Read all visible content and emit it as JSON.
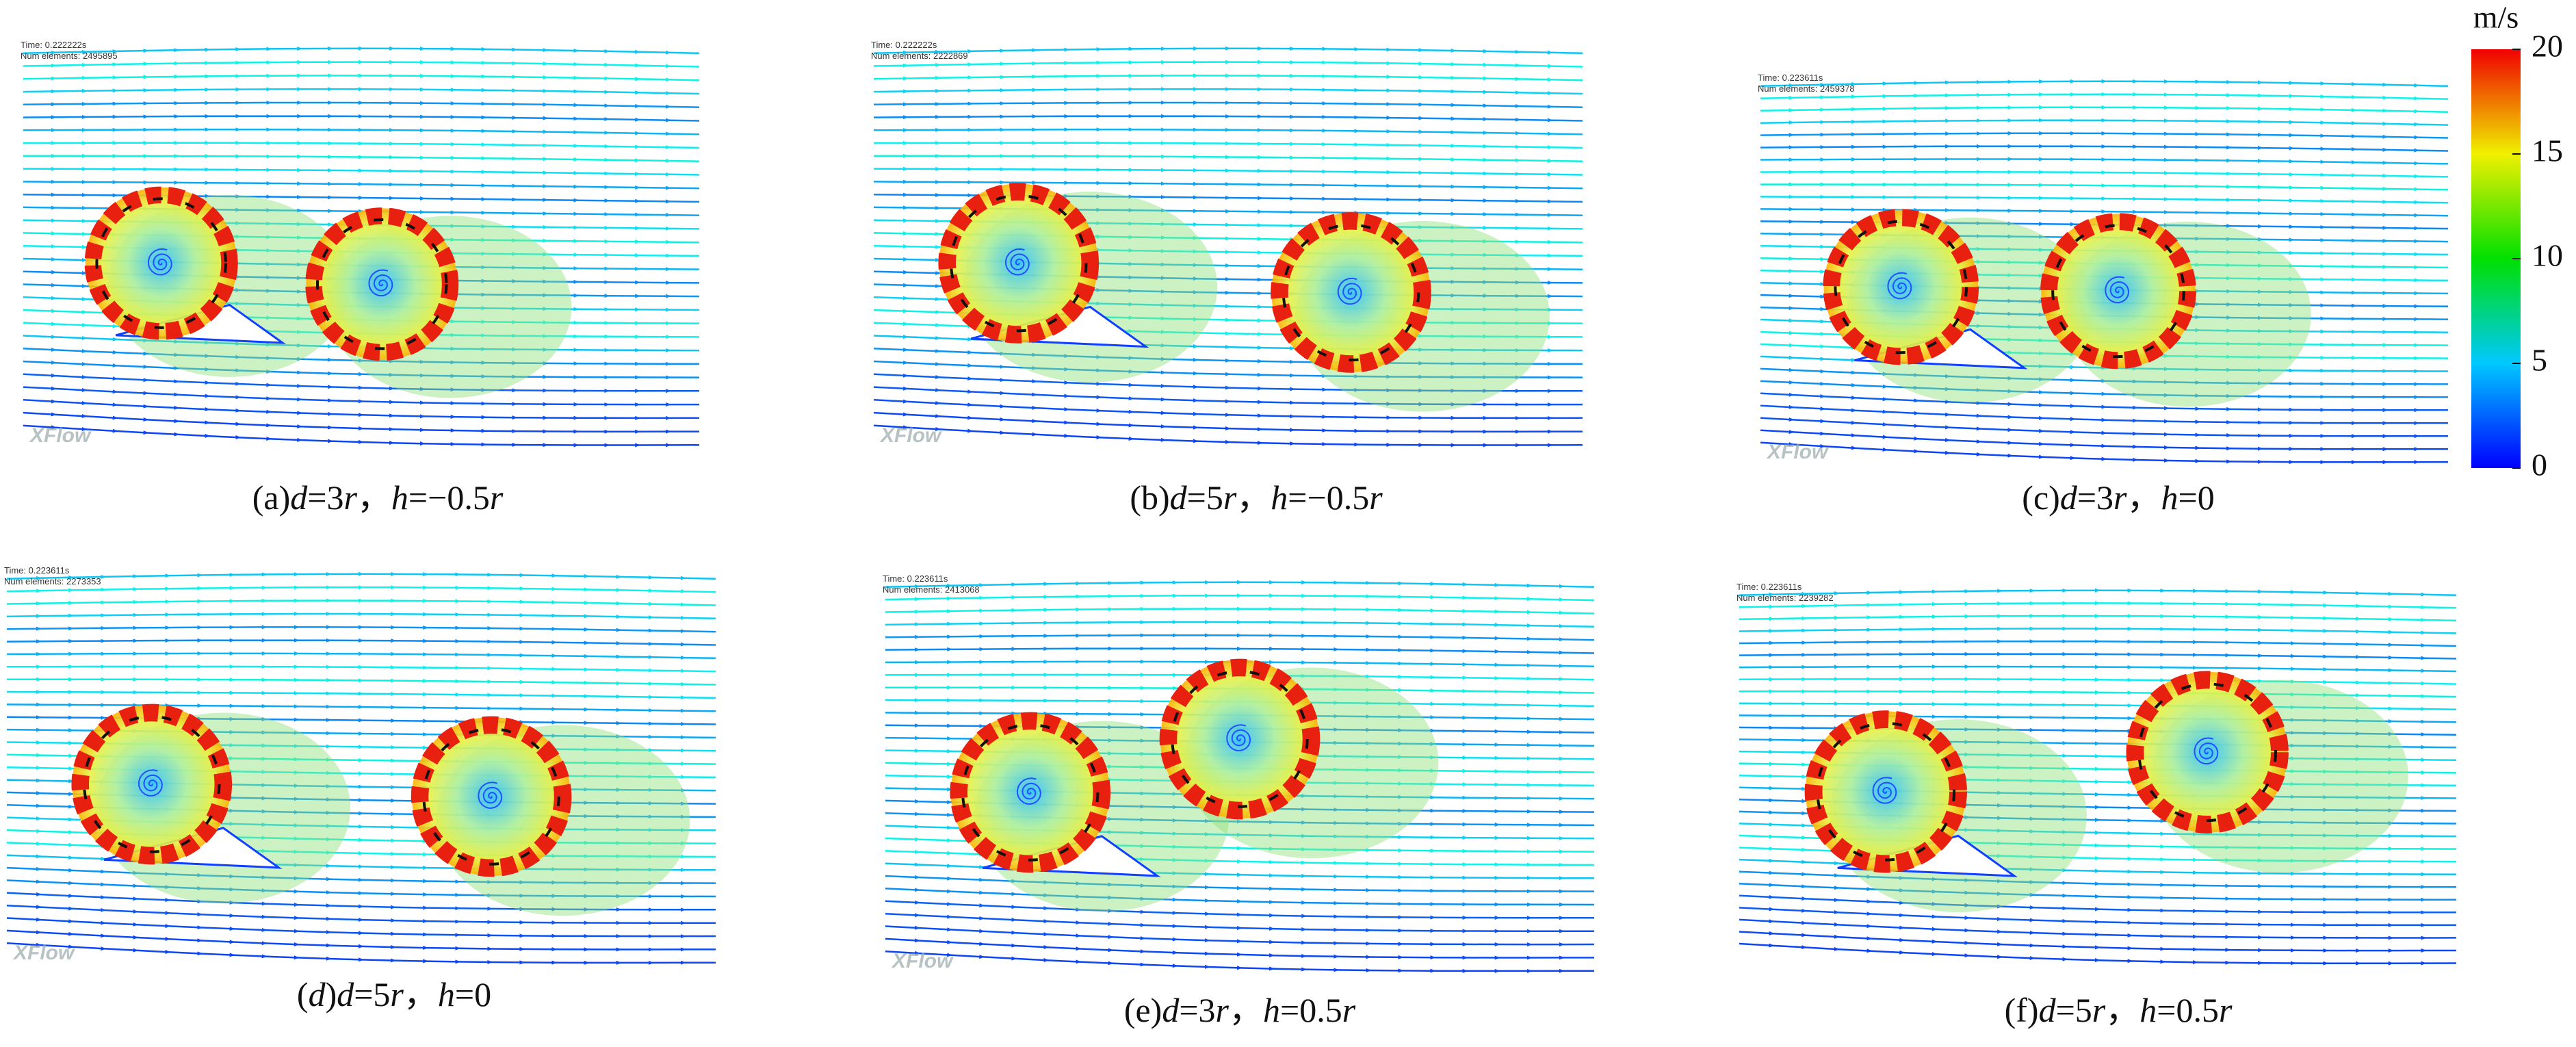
{
  "panels": [
    {
      "time": "Time: 0.222222s",
      "elements": "Num elements: 2495895",
      "logo": "XFlow",
      "caption": "(a)d=3r，h=−0.5r"
    },
    {
      "time": "Time: 0.222222s",
      "elements": "Num elements: 2222869",
      "logo": "XFlow",
      "caption": "(b)d=5r，h=−0.5r"
    },
    {
      "time": "Time: 0.223611s",
      "elements": "Num elements: 2459378",
      "logo": "XFlow",
      "caption": "(c)d=3r，h=0"
    },
    {
      "time": "Time: 0.223611s",
      "elements": "Num elements: 2273353",
      "logo": "XFlow",
      "caption": "(d)d=5r，h=0"
    },
    {
      "time": "Time: 0.223611s",
      "elements": "Num elements: 2413068",
      "logo": "XFlow",
      "caption": "(e)d=3r，h=0.5r"
    },
    {
      "time": "Time: 0.223611s",
      "elements": "Num elements: 2239282",
      "caption": "(f)d=5r，h=0.5r"
    }
  ],
  "colorbar": {
    "unit": "m/s",
    "lim": [
      0,
      20
    ],
    "ticks": [
      0,
      5,
      10,
      15,
      20
    ]
  }
}
